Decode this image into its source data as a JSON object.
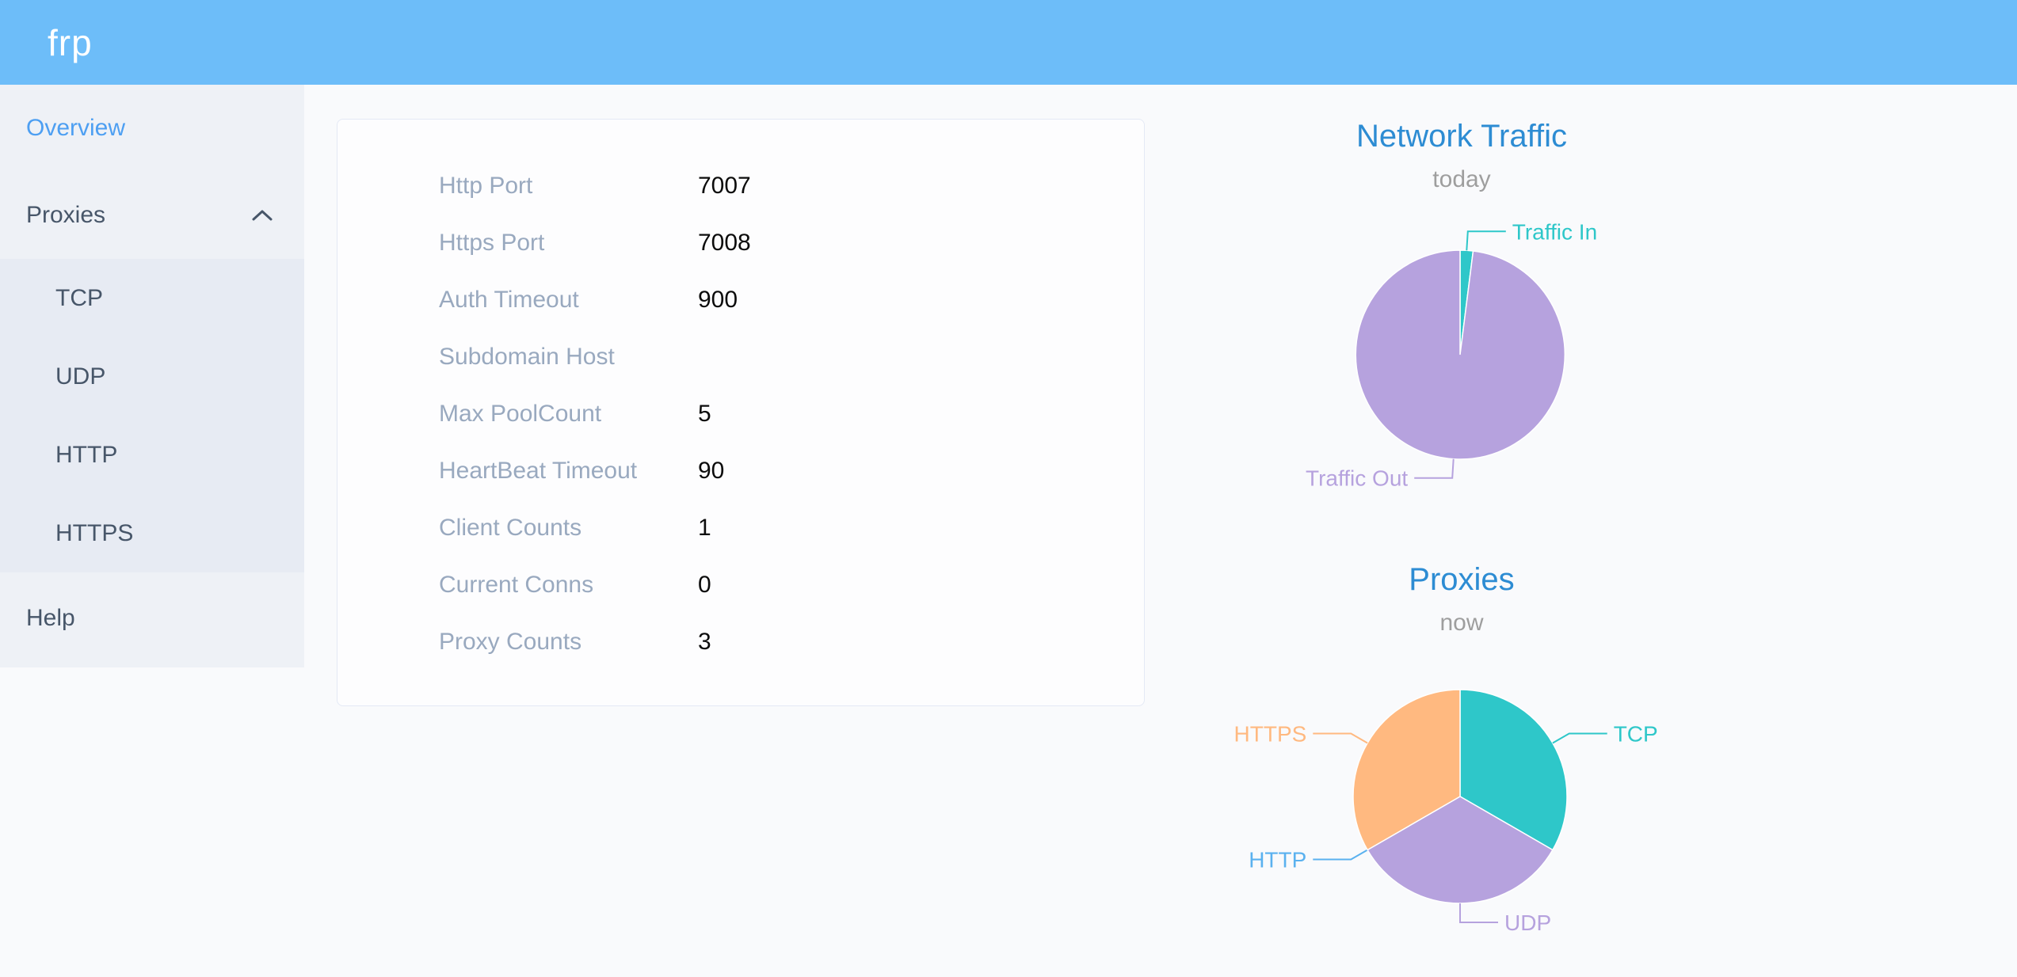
{
  "header": {
    "logo": "frp"
  },
  "sidebar": {
    "items": {
      "overview": {
        "label": "Overview",
        "active": true
      },
      "proxies": {
        "label": "Proxies",
        "expanded": true
      },
      "tcp": {
        "label": "TCP"
      },
      "udp": {
        "label": "UDP"
      },
      "http": {
        "label": "HTTP"
      },
      "https": {
        "label": "HTTPS"
      },
      "help": {
        "label": "Help"
      }
    }
  },
  "server_info": {
    "rows": [
      {
        "label": "Http Port",
        "value": "7007"
      },
      {
        "label": "Https Port",
        "value": "7008"
      },
      {
        "label": "Auth Timeout",
        "value": "900"
      },
      {
        "label": "Subdomain Host",
        "value": ""
      },
      {
        "label": "Max PoolCount",
        "value": "5"
      },
      {
        "label": "HeartBeat Timeout",
        "value": "90"
      },
      {
        "label": "Client Counts",
        "value": "1"
      },
      {
        "label": "Current Conns",
        "value": "0"
      },
      {
        "label": "Proxy Counts",
        "value": "3"
      }
    ]
  },
  "chart_data": [
    {
      "type": "pie",
      "title": "Network Traffic",
      "subtitle": "today",
      "legend_position": "none",
      "labels": "outside-with-leader-lines",
      "slices": [
        {
          "name": "Traffic In",
          "percent": 2,
          "color": "#2ec7c9"
        },
        {
          "name": "Traffic Out",
          "percent": 98,
          "color": "#b6a2de"
        }
      ]
    },
    {
      "type": "pie",
      "title": "Proxies",
      "subtitle": "now",
      "legend_position": "none",
      "labels": "outside-with-leader-lines",
      "slices": [
        {
          "name": "TCP",
          "value": 1,
          "percent": 33.3,
          "color": "#2ec7c9"
        },
        {
          "name": "UDP",
          "value": 1,
          "percent": 33.3,
          "color": "#b6a2de"
        },
        {
          "name": "HTTP",
          "value": 0,
          "percent": 0,
          "color": "#5ab1ef"
        },
        {
          "name": "HTTPS",
          "value": 1,
          "percent": 33.3,
          "color": "#ffb980"
        }
      ]
    }
  ],
  "colors": {
    "header_bg": "#6dbdf9",
    "sidebar_bg": "#eef1f6",
    "submenu_bg": "#e7ebf3",
    "sidebar_text": "#475669",
    "active_link": "#4d9ff2",
    "page_bg": "#f9fafc",
    "card_border": "#e4e9f5",
    "info_label": "#99a9bf",
    "info_value": "#0c0c0c",
    "chart_title": "#2d8cd3",
    "chart_subtitle": "#9e9e9e"
  }
}
